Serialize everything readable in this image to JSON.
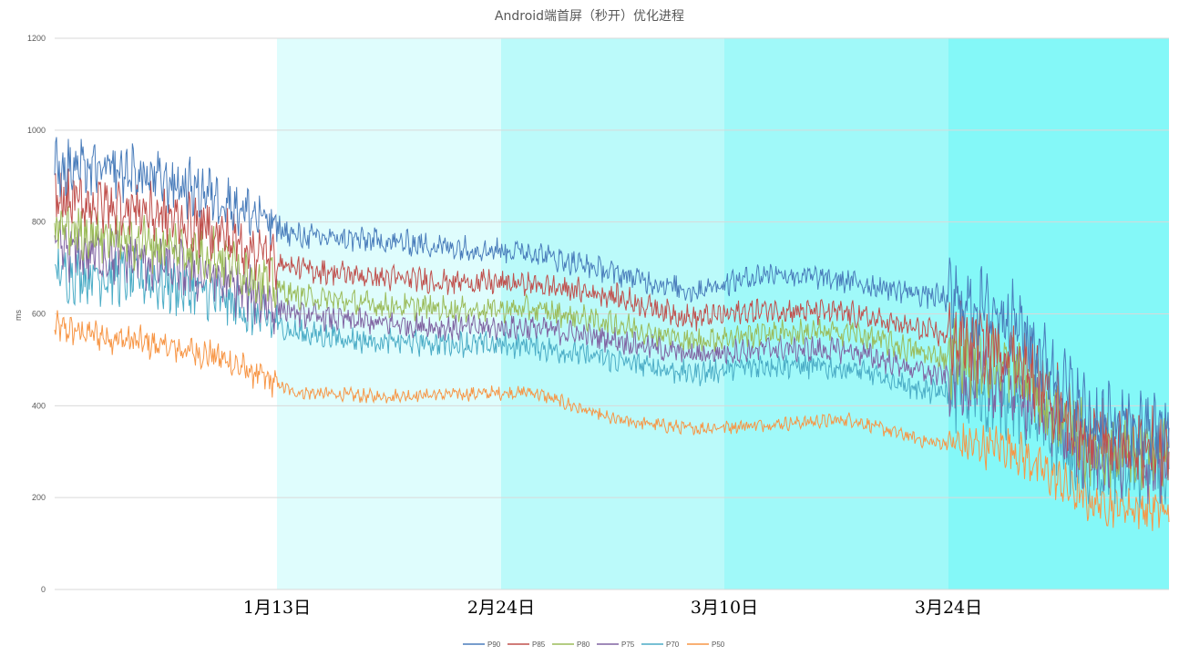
{
  "chart_data": {
    "type": "line",
    "title": "Android端首屏（秒开）优化进程",
    "xlabel": "",
    "ylabel": "ms",
    "ylim": [
      0,
      1200
    ],
    "yticks": [
      "0",
      "200",
      "400",
      "600",
      "800",
      "1000",
      "1200"
    ],
    "x_tick_labels": [
      "1月13日",
      "2月24日",
      "3月10日",
      "3月24日"
    ],
    "grid": true,
    "legend_position": "bottom",
    "phase_band_colors": [
      "#ffffff",
      "#dffdfd",
      "#bbfafa",
      "#a0f9f9",
      "#84f8f8"
    ],
    "series": [
      {
        "name": "P90",
        "color": "#4a7dbb",
        "values": [
          920,
          905,
          860,
          770,
          760,
          745,
          735,
          690,
          650,
          690,
          670,
          640,
          600,
          370,
          340
        ]
      },
      {
        "name": "P85",
        "color": "#c0504d",
        "values": [
          850,
          830,
          780,
          700,
          680,
          670,
          665,
          640,
          590,
          610,
          600,
          560,
          520,
          330,
          310
        ]
      },
      {
        "name": "P80",
        "color": "#9bbb59",
        "values": [
          790,
          760,
          730,
          640,
          620,
          610,
          610,
          580,
          540,
          560,
          560,
          510,
          490,
          310,
          290
        ]
      },
      {
        "name": "P75",
        "color": "#8064a2",
        "values": [
          740,
          720,
          680,
          600,
          580,
          570,
          570,
          545,
          510,
          525,
          520,
          470,
          450,
          290,
          275
        ]
      },
      {
        "name": "P70",
        "color": "#4bacc6",
        "values": [
          690,
          680,
          640,
          560,
          540,
          535,
          530,
          500,
          470,
          490,
          480,
          430,
          420,
          260,
          250
        ]
      },
      {
        "name": "P50",
        "color": "#f79646",
        "values": [
          570,
          540,
          510,
          430,
          420,
          425,
          430,
          370,
          350,
          360,
          370,
          320,
          310,
          190,
          170
        ]
      }
    ]
  }
}
